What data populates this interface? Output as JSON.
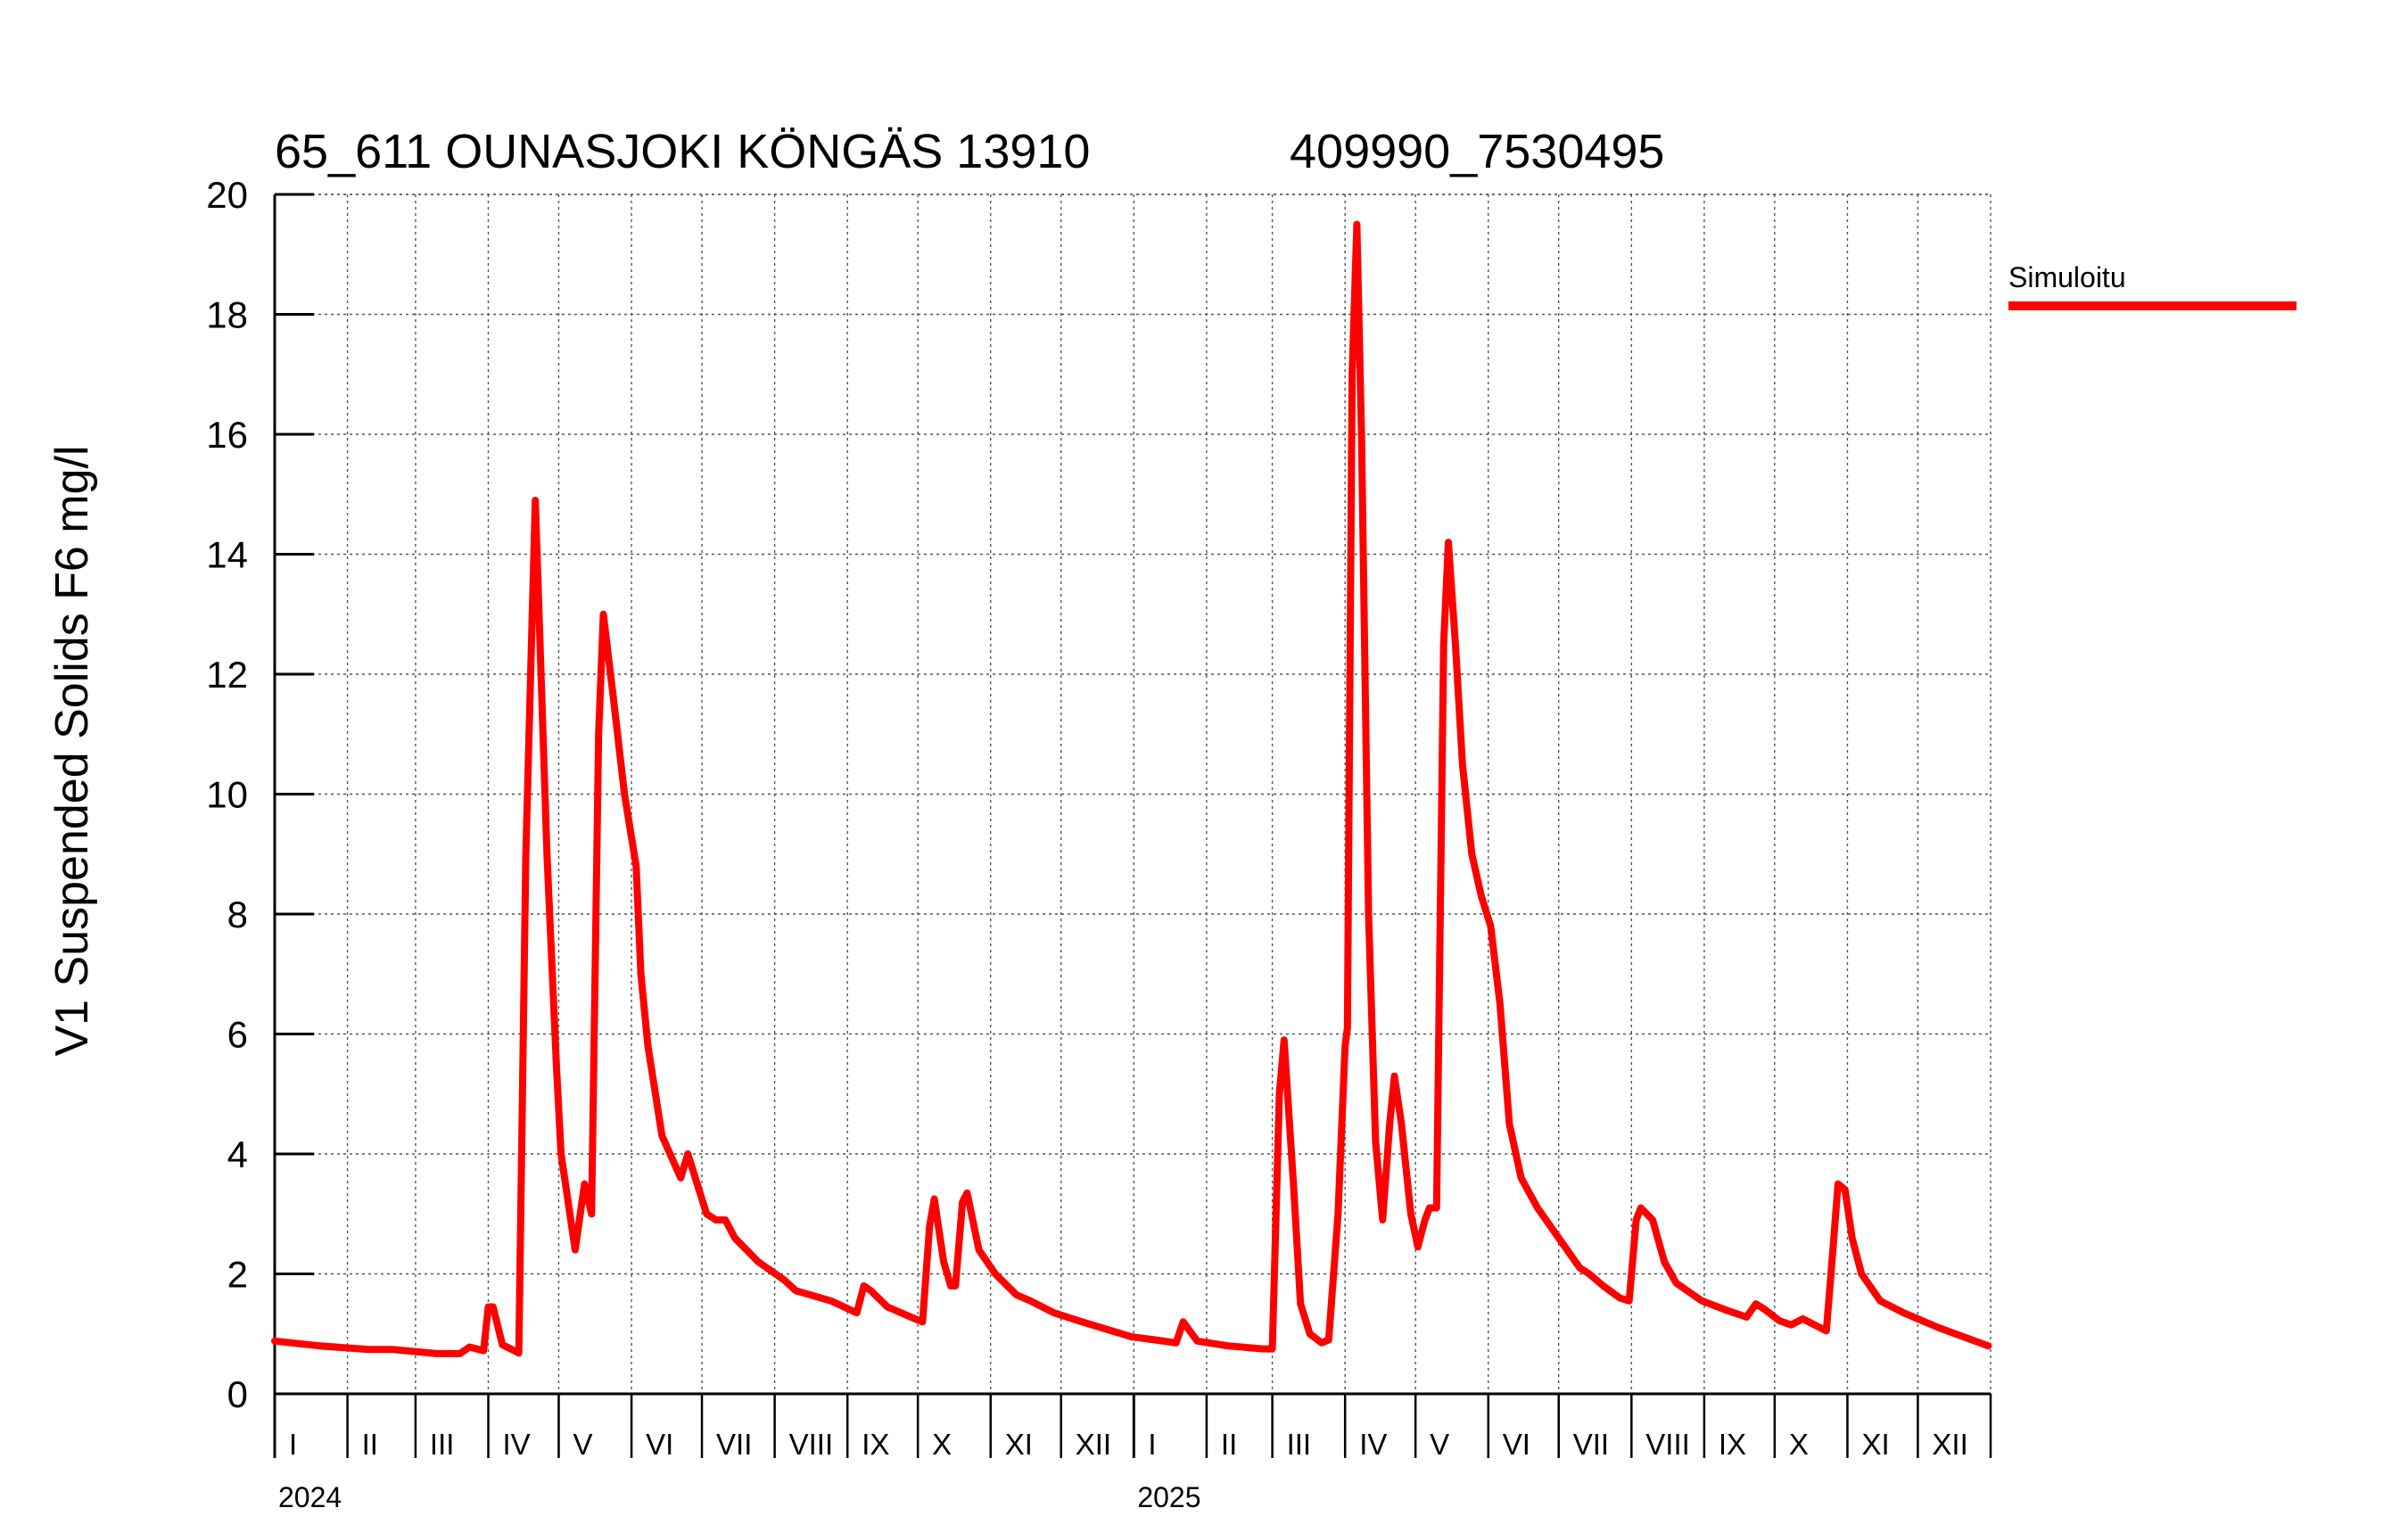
{
  "chart_data": {
    "type": "line",
    "title": "65_611 OUNASJOKI KÖNGÄS 13910",
    "subtitle": "409990_7530495",
    "xlabel": "",
    "ylabel": "V1 Suspended Solids F6 mg/l",
    "ylim": [
      0,
      20
    ],
    "yticks": [
      0,
      2,
      4,
      6,
      8,
      10,
      12,
      14,
      16,
      18,
      20
    ],
    "xlim": [
      "2024-01-01",
      "2025-12-31"
    ],
    "month_labels": [
      "I",
      "II",
      "III",
      "IV",
      "V",
      "VI",
      "VII",
      "VIII",
      "IX",
      "X",
      "XI",
      "XII"
    ],
    "year_labels": [
      "2024",
      "2025"
    ],
    "grid": true,
    "legend": {
      "placement": "top-right outside plot",
      "entries": [
        "Simuloitu"
      ]
    },
    "series": [
      {
        "name": "Simuloitu",
        "color": "#ff0000",
        "points": [
          [
            "2024-01-01",
            0.88
          ],
          [
            "2024-01-20",
            0.8
          ],
          [
            "2024-02-10",
            0.74
          ],
          [
            "2024-02-20",
            0.74
          ],
          [
            "2024-03-10",
            0.67
          ],
          [
            "2024-03-20",
            0.67
          ],
          [
            "2024-03-24",
            0.78
          ],
          [
            "2024-03-30",
            0.72
          ],
          [
            "2024-04-01",
            1.45
          ],
          [
            "2024-04-03",
            1.45
          ],
          [
            "2024-04-07",
            0.82
          ],
          [
            "2024-04-12",
            0.72
          ],
          [
            "2024-04-14",
            0.68
          ],
          [
            "2024-04-17",
            9.0
          ],
          [
            "2024-04-21",
            14.9
          ],
          [
            "2024-04-26",
            9.0
          ],
          [
            "2024-04-30",
            5.5
          ],
          [
            "2024-05-02",
            4.0
          ],
          [
            "2024-05-08",
            2.4
          ],
          [
            "2024-05-12",
            3.5
          ],
          [
            "2024-05-15",
            3.0
          ],
          [
            "2024-05-18",
            11.0
          ],
          [
            "2024-05-20",
            13.0
          ],
          [
            "2024-05-24",
            11.7
          ],
          [
            "2024-05-29",
            10.0
          ],
          [
            "2024-06-03",
            8.8
          ],
          [
            "2024-06-05",
            7.0
          ],
          [
            "2024-06-08",
            5.8
          ],
          [
            "2024-06-14",
            4.3
          ],
          [
            "2024-06-22",
            3.6
          ],
          [
            "2024-06-25",
            4.0
          ],
          [
            "2024-07-03",
            3.0
          ],
          [
            "2024-07-07",
            2.9
          ],
          [
            "2024-07-11",
            2.9
          ],
          [
            "2024-07-15",
            2.6
          ],
          [
            "2024-07-25",
            2.2
          ],
          [
            "2024-08-05",
            1.9
          ],
          [
            "2024-08-10",
            1.72
          ],
          [
            "2024-08-25",
            1.55
          ],
          [
            "2024-09-05",
            1.35
          ],
          [
            "2024-09-08",
            1.8
          ],
          [
            "2024-09-11",
            1.72
          ],
          [
            "2024-09-18",
            1.45
          ],
          [
            "2024-09-28",
            1.28
          ],
          [
            "2024-10-03",
            1.2
          ],
          [
            "2024-10-06",
            2.8
          ],
          [
            "2024-10-08",
            3.25
          ],
          [
            "2024-10-12",
            2.2
          ],
          [
            "2024-10-15",
            1.8
          ],
          [
            "2024-10-17",
            1.8
          ],
          [
            "2024-10-20",
            3.2
          ],
          [
            "2024-10-22",
            3.35
          ],
          [
            "2024-10-27",
            2.4
          ],
          [
            "2024-11-03",
            2.0
          ],
          [
            "2024-11-12",
            1.65
          ],
          [
            "2024-11-18",
            1.55
          ],
          [
            "2024-11-28",
            1.35
          ],
          [
            "2024-12-10",
            1.2
          ],
          [
            "2024-12-31",
            0.95
          ],
          [
            "2025-01-10",
            0.9
          ],
          [
            "2025-01-19",
            0.85
          ],
          [
            "2025-01-22",
            1.2
          ],
          [
            "2025-01-28",
            0.88
          ],
          [
            "2025-02-10",
            0.8
          ],
          [
            "2025-02-25",
            0.75
          ],
          [
            "2025-03-01",
            0.75
          ],
          [
            "2025-03-04",
            5.0
          ],
          [
            "2025-03-06",
            5.9
          ],
          [
            "2025-03-10",
            3.5
          ],
          [
            "2025-03-13",
            1.5
          ],
          [
            "2025-03-17",
            1.0
          ],
          [
            "2025-03-22",
            0.85
          ],
          [
            "2025-03-25",
            0.9
          ],
          [
            "2025-03-29",
            3.0
          ],
          [
            "2025-04-01",
            5.8
          ],
          [
            "2025-04-02",
            6.1
          ],
          [
            "2025-04-04",
            17.0
          ],
          [
            "2025-04-06",
            19.5
          ],
          [
            "2025-04-08",
            16.0
          ],
          [
            "2025-04-11",
            8.0
          ],
          [
            "2025-04-14",
            4.2
          ],
          [
            "2025-04-17",
            2.9
          ],
          [
            "2025-04-20",
            4.5
          ],
          [
            "2025-04-22",
            5.3
          ],
          [
            "2025-04-25",
            4.5
          ],
          [
            "2025-04-29",
            3.0
          ],
          [
            "2025-05-02",
            2.45
          ],
          [
            "2025-05-05",
            2.9
          ],
          [
            "2025-05-07",
            3.1
          ],
          [
            "2025-05-10",
            3.1
          ],
          [
            "2025-05-13",
            12.5
          ],
          [
            "2025-05-15",
            14.2
          ],
          [
            "2025-05-18",
            12.5
          ],
          [
            "2025-05-21",
            10.5
          ],
          [
            "2025-05-25",
            9.0
          ],
          [
            "2025-05-29",
            8.3
          ],
          [
            "2025-06-02",
            7.8
          ],
          [
            "2025-06-06",
            6.5
          ],
          [
            "2025-06-10",
            4.5
          ],
          [
            "2025-06-15",
            3.6
          ],
          [
            "2025-06-22",
            3.1
          ],
          [
            "2025-07-01",
            2.6
          ],
          [
            "2025-07-10",
            2.1
          ],
          [
            "2025-07-14",
            2.0
          ],
          [
            "2025-07-20",
            1.8
          ],
          [
            "2025-07-27",
            1.6
          ],
          [
            "2025-07-31",
            1.55
          ],
          [
            "2025-08-03",
            2.9
          ],
          [
            "2025-08-05",
            3.1
          ],
          [
            "2025-08-10",
            2.9
          ],
          [
            "2025-08-15",
            2.2
          ],
          [
            "2025-08-20",
            1.85
          ],
          [
            "2025-08-31",
            1.55
          ],
          [
            "2025-09-10",
            1.4
          ],
          [
            "2025-09-19",
            1.28
          ],
          [
            "2025-09-23",
            1.5
          ],
          [
            "2025-09-27",
            1.4
          ],
          [
            "2025-10-03",
            1.22
          ],
          [
            "2025-10-08",
            1.15
          ],
          [
            "2025-10-13",
            1.25
          ],
          [
            "2025-10-18",
            1.15
          ],
          [
            "2025-10-23",
            1.05
          ],
          [
            "2025-10-26",
            2.5
          ],
          [
            "2025-10-28",
            3.5
          ],
          [
            "2025-10-31",
            3.4
          ],
          [
            "2025-11-03",
            2.6
          ],
          [
            "2025-11-07",
            2.0
          ],
          [
            "2025-11-15",
            1.55
          ],
          [
            "2025-11-25",
            1.35
          ],
          [
            "2025-12-10",
            1.1
          ],
          [
            "2025-12-31",
            0.8
          ]
        ]
      }
    ]
  }
}
